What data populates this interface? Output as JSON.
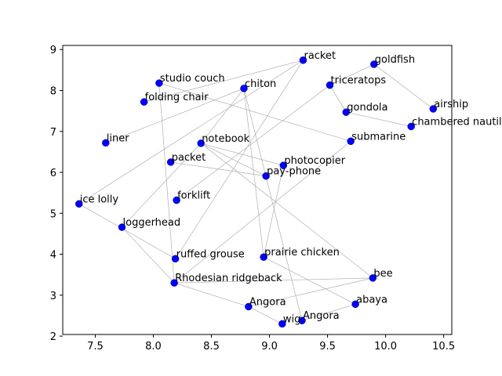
{
  "chart_data": {
    "type": "scatter",
    "title": "",
    "xlabel": "",
    "ylabel": "",
    "xlim": [
      7.22,
      10.57
    ],
    "ylim": [
      2.04,
      9.1
    ],
    "xticks": [
      7.5,
      8.0,
      8.5,
      9.0,
      9.5,
      10.0,
      10.5
    ],
    "xtick_labels": [
      "7.5",
      "8.0",
      "8.5",
      "9.0",
      "9.5",
      "10.0",
      "10.5"
    ],
    "yticks": [
      2,
      3,
      4,
      5,
      6,
      7,
      8,
      9
    ],
    "ytick_labels": [
      "2",
      "3",
      "4",
      "5",
      "6",
      "7",
      "8",
      "9"
    ],
    "grid": false,
    "point_color": "#0000ff",
    "edge_color": "#b0b0b0",
    "points": [
      {
        "label": "racket",
        "x": 9.29,
        "y": 8.74
      },
      {
        "label": "goldfish",
        "x": 9.9,
        "y": 8.64
      },
      {
        "label": "studio couch",
        "x": 8.05,
        "y": 8.18
      },
      {
        "label": "chiton",
        "x": 8.78,
        "y": 8.05
      },
      {
        "label": "triceratops",
        "x": 9.52,
        "y": 8.13
      },
      {
        "label": "airship",
        "x": 10.41,
        "y": 7.55
      },
      {
        "label": "folding chair",
        "x": 7.92,
        "y": 7.72
      },
      {
        "label": "gondola",
        "x": 9.66,
        "y": 7.47
      },
      {
        "label": "chambered nautilus",
        "x": 10.22,
        "y": 7.12
      },
      {
        "label": "liner",
        "x": 7.59,
        "y": 6.72
      },
      {
        "label": "notebook",
        "x": 8.41,
        "y": 6.71
      },
      {
        "label": "submarine",
        "x": 9.7,
        "y": 6.76
      },
      {
        "label": "packet",
        "x": 8.15,
        "y": 6.25
      },
      {
        "label": "photocopier",
        "x": 9.12,
        "y": 6.17
      },
      {
        "label": "pay-phone",
        "x": 8.97,
        "y": 5.91
      },
      {
        "label": "forklift",
        "x": 8.2,
        "y": 5.32
      },
      {
        "label": "ice lolly",
        "x": 7.36,
        "y": 5.23
      },
      {
        "label": "loggerhead",
        "x": 7.73,
        "y": 4.66
      },
      {
        "label": "ruffed grouse",
        "x": 8.19,
        "y": 3.89
      },
      {
        "label": "prairie chicken",
        "x": 8.95,
        "y": 3.93
      },
      {
        "label": "bee",
        "x": 9.89,
        "y": 3.42
      },
      {
        "label": "Rhodesian ridgeback",
        "x": 8.18,
        "y": 3.3
      },
      {
        "label": "abaya",
        "x": 9.74,
        "y": 2.78
      },
      {
        "label": "Angora",
        "x": 8.82,
        "y": 2.72
      },
      {
        "label": "Angora",
        "x": 9.28,
        "y": 2.38
      },
      {
        "label": "wig",
        "x": 9.11,
        "y": 2.3
      }
    ],
    "edges": [
      [
        2,
        21
      ],
      [
        2,
        11
      ],
      [
        0,
        6
      ],
      [
        0,
        18
      ],
      [
        0,
        16
      ],
      [
        1,
        5
      ],
      [
        1,
        4
      ],
      [
        3,
        9
      ],
      [
        3,
        10
      ],
      [
        3,
        19
      ],
      [
        3,
        24
      ],
      [
        4,
        15
      ],
      [
        4,
        7
      ],
      [
        7,
        8
      ],
      [
        10,
        17
      ],
      [
        10,
        13
      ],
      [
        10,
        14
      ],
      [
        10,
        20
      ],
      [
        11,
        21
      ],
      [
        12,
        14
      ],
      [
        13,
        19
      ],
      [
        16,
        18
      ],
      [
        17,
        21
      ],
      [
        19,
        22
      ],
      [
        21,
        23
      ],
      [
        23,
        20
      ],
      [
        23,
        25
      ],
      [
        20,
        21
      ],
      [
        22,
        24
      ]
    ]
  }
}
